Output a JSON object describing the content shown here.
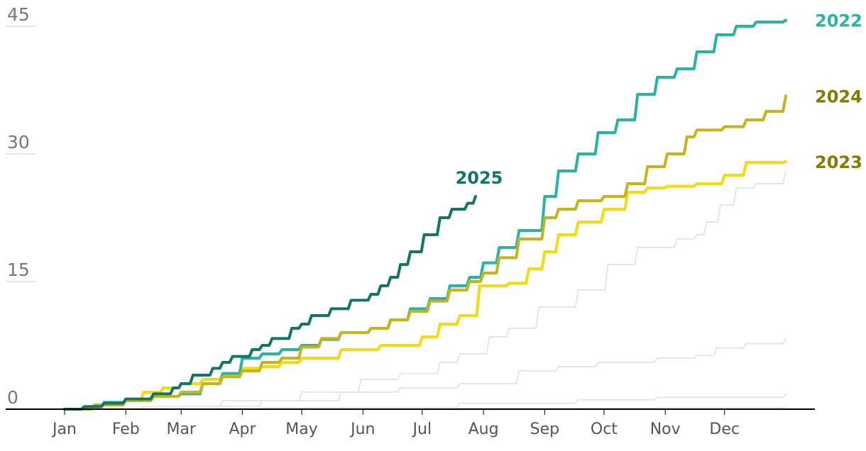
{
  "chart_data": {
    "type": "line",
    "title": "",
    "xlabel": "",
    "ylabel": "",
    "x_unit": "day of year",
    "xlim": [
      0,
      365
    ],
    "ylim": [
      0,
      45
    ],
    "y_ticks": [
      {
        "value": 0,
        "label": "0"
      },
      {
        "value": 15,
        "label": "15"
      },
      {
        "value": 30,
        "label": "30"
      },
      {
        "value": 45,
        "label": "45"
      }
    ],
    "x_ticks": [
      {
        "day": 0,
        "label": "Jan"
      },
      {
        "day": 31,
        "label": "Feb"
      },
      {
        "day": 59,
        "label": "Mar"
      },
      {
        "day": 90,
        "label": "Apr"
      },
      {
        "day": 120,
        "label": "May"
      },
      {
        "day": 151,
        "label": "Jun"
      },
      {
        "day": 181,
        "label": "Jul"
      },
      {
        "day": 212,
        "label": "Aug"
      },
      {
        "day": 243,
        "label": "Sep"
      },
      {
        "day": 273,
        "label": "Oct"
      },
      {
        "day": 304,
        "label": "Nov"
      },
      {
        "day": 334,
        "label": "Dec"
      }
    ],
    "series": [
      {
        "id": "bg1",
        "name": "",
        "color": "#e5e5e5",
        "points": [
          [
            0,
            0
          ],
          [
            40,
            0.3
          ],
          [
            80,
            1
          ],
          [
            120,
            2
          ],
          [
            150,
            3.5
          ],
          [
            170,
            4.2
          ],
          [
            190,
            5.5
          ],
          [
            200,
            6.5
          ],
          [
            215,
            8.5
          ],
          [
            225,
            9.5
          ],
          [
            240,
            12
          ],
          [
            260,
            14
          ],
          [
            275,
            17
          ],
          [
            290,
            19
          ],
          [
            310,
            20
          ],
          [
            320,
            20.5
          ],
          [
            325,
            22
          ],
          [
            332,
            24
          ],
          [
            340,
            26
          ],
          [
            350,
            26.5
          ],
          [
            365,
            28
          ]
        ]
      },
      {
        "id": "bg2",
        "name": "",
        "color": "#e5e5e5",
        "points": [
          [
            0,
            0
          ],
          [
            60,
            0.3
          ],
          [
            100,
            1
          ],
          [
            140,
            2
          ],
          [
            170,
            2.5
          ],
          [
            200,
            3
          ],
          [
            230,
            4.5
          ],
          [
            250,
            5
          ],
          [
            270,
            5.5
          ],
          [
            300,
            6
          ],
          [
            320,
            6.3
          ],
          [
            330,
            7.2
          ],
          [
            345,
            7.7
          ],
          [
            365,
            8.2
          ]
        ]
      },
      {
        "id": "bg3",
        "name": "",
        "color": "#e5e5e5",
        "points": [
          [
            0,
            0
          ],
          [
            100,
            0.2
          ],
          [
            200,
            0.7
          ],
          [
            260,
            1.1
          ],
          [
            300,
            1.4
          ],
          [
            365,
            1.8
          ]
        ]
      },
      {
        "id": "bg4",
        "name": "",
        "color": "#e5e5e5",
        "points": [
          [
            0,
            0
          ],
          [
            200,
            0.1
          ],
          [
            300,
            0.2
          ],
          [
            365,
            0.3
          ]
        ]
      },
      {
        "id": "y2023",
        "name": "2023",
        "color": "#f2dc10",
        "points": [
          [
            0,
            0
          ],
          [
            10,
            0.2
          ],
          [
            20,
            0.5
          ],
          [
            31,
            1
          ],
          [
            40,
            2
          ],
          [
            50,
            2.5
          ],
          [
            59,
            3
          ],
          [
            70,
            3.5
          ],
          [
            80,
            4
          ],
          [
            90,
            4.8
          ],
          [
            100,
            5
          ],
          [
            110,
            5.5
          ],
          [
            120,
            6
          ],
          [
            140,
            7
          ],
          [
            160,
            7.5
          ],
          [
            181,
            8.5
          ],
          [
            190,
            10
          ],
          [
            200,
            11
          ],
          [
            210,
            14.5
          ],
          [
            225,
            14.8
          ],
          [
            235,
            16.5
          ],
          [
            243,
            18.5
          ],
          [
            250,
            20.5
          ],
          [
            260,
            22
          ],
          [
            273,
            23.5
          ],
          [
            285,
            25.5
          ],
          [
            295,
            26
          ],
          [
            305,
            26.2
          ],
          [
            320,
            26.5
          ],
          [
            334,
            27.5
          ],
          [
            345,
            29
          ],
          [
            365,
            29.1
          ]
        ]
      },
      {
        "id": "y2022",
        "name": "2022",
        "color": "#2ab3a4",
        "points": [
          [
            0,
            0
          ],
          [
            10,
            0.3
          ],
          [
            20,
            0.8
          ],
          [
            31,
            1
          ],
          [
            45,
            1.5
          ],
          [
            59,
            1.8
          ],
          [
            70,
            3
          ],
          [
            80,
            4.2
          ],
          [
            90,
            6
          ],
          [
            100,
            6.5
          ],
          [
            110,
            7
          ],
          [
            120,
            7.5
          ],
          [
            130,
            8.2
          ],
          [
            140,
            9
          ],
          [
            155,
            9.5
          ],
          [
            165,
            10.5
          ],
          [
            175,
            11.8
          ],
          [
            185,
            13
          ],
          [
            195,
            14.5
          ],
          [
            205,
            15.5
          ],
          [
            212,
            17.2
          ],
          [
            220,
            19
          ],
          [
            230,
            21
          ],
          [
            243,
            25
          ],
          [
            250,
            28
          ],
          [
            260,
            30
          ],
          [
            270,
            32.5
          ],
          [
            280,
            34
          ],
          [
            290,
            37
          ],
          [
            300,
            39
          ],
          [
            310,
            40
          ],
          [
            320,
            42
          ],
          [
            330,
            44
          ],
          [
            340,
            45
          ],
          [
            350,
            45.5
          ],
          [
            365,
            45.7
          ]
        ]
      },
      {
        "id": "y2024",
        "name": "2024",
        "color": "#c4b51c",
        "points": [
          [
            0,
            0
          ],
          [
            15,
            0.5
          ],
          [
            31,
            1
          ],
          [
            45,
            1.5
          ],
          [
            59,
            2
          ],
          [
            70,
            3
          ],
          [
            80,
            3.8
          ],
          [
            90,
            4.5
          ],
          [
            100,
            5.5
          ],
          [
            110,
            6
          ],
          [
            120,
            7.3
          ],
          [
            130,
            8.3
          ],
          [
            140,
            9
          ],
          [
            155,
            9.5
          ],
          [
            165,
            10.5
          ],
          [
            175,
            11.5
          ],
          [
            185,
            12.7
          ],
          [
            195,
            14
          ],
          [
            205,
            15
          ],
          [
            212,
            16
          ],
          [
            220,
            17.8
          ],
          [
            230,
            20
          ],
          [
            243,
            22.5
          ],
          [
            250,
            23.5
          ],
          [
            260,
            24.5
          ],
          [
            273,
            25
          ],
          [
            285,
            26.5
          ],
          [
            295,
            28.5
          ],
          [
            305,
            30
          ],
          [
            315,
            32
          ],
          [
            320,
            32.8
          ],
          [
            334,
            33.2
          ],
          [
            345,
            34
          ],
          [
            355,
            35
          ],
          [
            365,
            36.8
          ]
        ]
      },
      {
        "id": "y2025",
        "name": "2025",
        "color": "#137563",
        "points": [
          [
            0,
            0
          ],
          [
            10,
            0.3
          ],
          [
            20,
            0.7
          ],
          [
            31,
            1.2
          ],
          [
            45,
            1.8
          ],
          [
            55,
            2.5
          ],
          [
            59,
            3
          ],
          [
            65,
            4
          ],
          [
            75,
            4.8
          ],
          [
            80,
            5.5
          ],
          [
            85,
            6.2
          ],
          [
            95,
            7
          ],
          [
            100,
            7.5
          ],
          [
            105,
            8.3
          ],
          [
            115,
            9.5
          ],
          [
            120,
            10
          ],
          [
            125,
            11
          ],
          [
            135,
            11.8
          ],
          [
            145,
            12.8
          ],
          [
            155,
            13.5
          ],
          [
            160,
            14.5
          ],
          [
            165,
            15.5
          ],
          [
            170,
            17
          ],
          [
            175,
            18.5
          ],
          [
            182,
            20.5
          ],
          [
            190,
            22.5
          ],
          [
            196,
            23.5
          ],
          [
            204,
            24.2
          ],
          [
            208,
            25
          ]
        ]
      }
    ],
    "series_labels": [
      {
        "series": "y2022",
        "text": "2022"
      },
      {
        "series": "y2024",
        "text": "2024"
      },
      {
        "series": "y2023",
        "text": "2023"
      },
      {
        "series": "y2025",
        "text": "2025"
      }
    ]
  }
}
